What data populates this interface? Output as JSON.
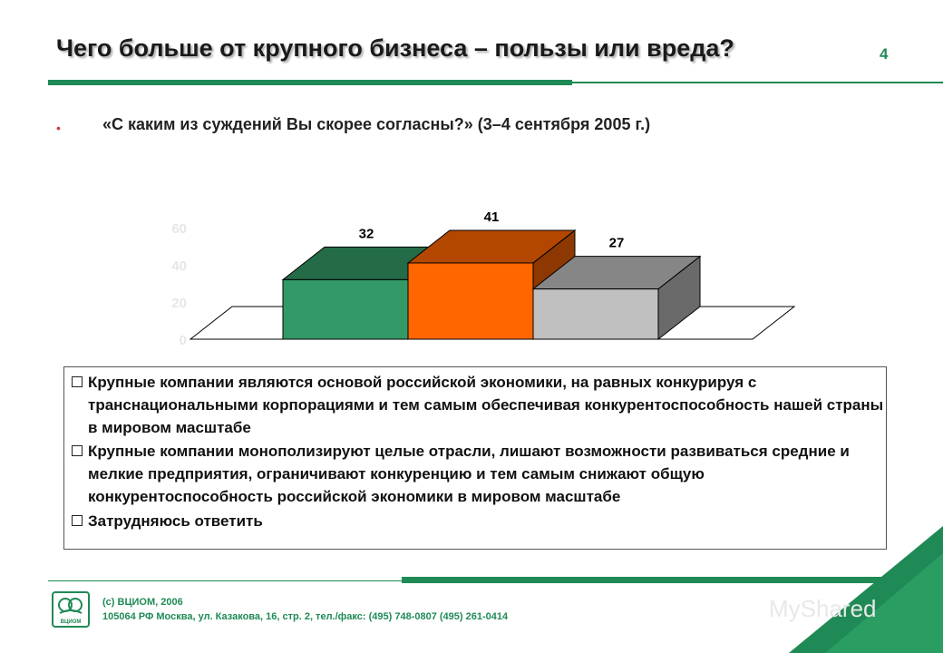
{
  "header": {
    "title": "Чего больше от крупного бизнеса – пользы или вреда?",
    "page_number": "4"
  },
  "question": {
    "text": "«С каким из суждений Вы скорее согласны?» (3–4 сентября 2005 г.)"
  },
  "chart_data": {
    "type": "bar",
    "categories": [
      "Крупные компании являются основой российской экономики, на равных конкурируя с транснациональными корпорациями и тем самым обеспечивая конкурентоспособность нашей страны в мировом масштабе",
      "Крупные компании монополизируют целые отрасли, лишают возможности развиваться средние и мелкие предприятия, ограничивают конкуренцию и тем самым снижают общую конкурентоспособность российской экономики в мировом масштабе",
      "Затрудняюсь ответить"
    ],
    "values": [
      32,
      41,
      27
    ],
    "value_labels": [
      "32",
      "41",
      "27"
    ],
    "colors": [
      "#339966",
      "#ff6600",
      "#c0c0c0"
    ],
    "y_ticks": [
      "0",
      "20",
      "40",
      "60"
    ],
    "ylim": [
      0,
      60
    ],
    "legend_position": "bottom",
    "grid": false
  },
  "legend": {
    "items": [
      {
        "label": "Крупные компании являются основой российской экономики, на равных конкурируя с транснациональными корпорациями и тем самым обеспечивая конкурентоспособность нашей страны в мировом масштабе",
        "color": "#339966"
      },
      {
        "label": "Крупные компании монополизируют целые отрасли, лишают возможности развиваться средние и мелкие предприятия, ограничивают конкуренцию и тем самым снижают общую конкурентоспособность российской экономики в мировом масштабе",
        "color": "#ff6600"
      },
      {
        "label": "Затрудняюсь ответить",
        "color": "#c0c0c0"
      }
    ]
  },
  "footer": {
    "copyright": "(c) ВЦИОМ, 2006",
    "address": "105064 РФ Москва, ул. Казакова, 16, стр. 2, тел./факс: (495) 748-0807 (495) 261-0414",
    "logo_text": "ВЦИОМ"
  },
  "watermark": {
    "text": "MyShared"
  },
  "theme": {
    "accent": "#1f8a55"
  }
}
